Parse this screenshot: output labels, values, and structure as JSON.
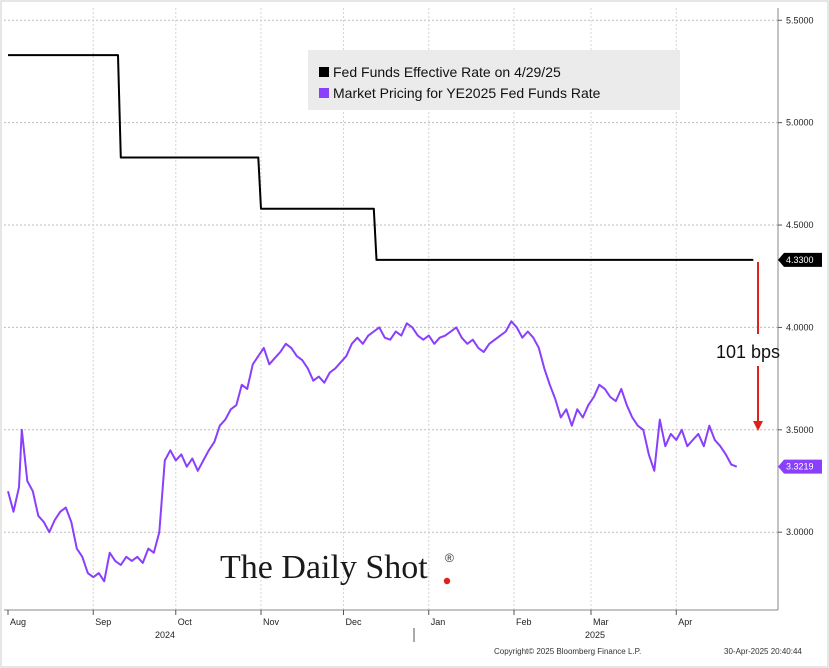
{
  "chart_data": {
    "type": "line",
    "ylim": [
      2.62,
      5.56
    ],
    "yticks": [
      "5.5000",
      "5.0000",
      "4.5000",
      "4.0000",
      "3.5000",
      "3.0000"
    ],
    "ytick_values": [
      5.5,
      5.0,
      4.5,
      4.0,
      3.5,
      3.0
    ],
    "month_ticks": [
      {
        "label": "Aug",
        "day": 0
      },
      {
        "label": "Sep",
        "day": 31
      },
      {
        "label": "Oct",
        "day": 61
      },
      {
        "label": "Nov",
        "day": 92
      },
      {
        "label": "Dec",
        "day": 122
      },
      {
        "label": "Jan",
        "day": 153
      },
      {
        "label": "Feb",
        "day": 184
      },
      {
        "label": "Mar",
        "day": 212
      },
      {
        "label": "Apr",
        "day": 243
      }
    ],
    "year_labels": [
      "2024",
      "2025"
    ],
    "x_end_day": 272,
    "series": [
      {
        "name": "Fed Funds Effective Rate on 4/29/25",
        "color": "#000000",
        "last_value_label": "4.3300",
        "points": [
          [
            0,
            5.33
          ],
          [
            40,
            5.33
          ],
          [
            41,
            4.83
          ],
          [
            91,
            4.83
          ],
          [
            92,
            4.58
          ],
          [
            133,
            4.58
          ],
          [
            134,
            4.33
          ],
          [
            271,
            4.33
          ]
        ]
      },
      {
        "name": "Market Pricing for YE2025 Fed Funds Rate",
        "color": "#8a3ffc",
        "last_value_label": "3.3219",
        "points": [
          [
            0,
            3.2
          ],
          [
            2,
            3.1
          ],
          [
            4,
            3.22
          ],
          [
            5,
            3.5
          ],
          [
            7,
            3.25
          ],
          [
            9,
            3.2
          ],
          [
            11,
            3.08
          ],
          [
            13,
            3.05
          ],
          [
            15,
            3.0
          ],
          [
            17,
            3.06
          ],
          [
            19,
            3.1
          ],
          [
            21,
            3.12
          ],
          [
            23,
            3.05
          ],
          [
            25,
            2.92
          ],
          [
            27,
            2.88
          ],
          [
            29,
            2.8
          ],
          [
            31,
            2.78
          ],
          [
            33,
            2.8
          ],
          [
            35,
            2.76
          ],
          [
            37,
            2.9
          ],
          [
            39,
            2.86
          ],
          [
            41,
            2.84
          ],
          [
            43,
            2.88
          ],
          [
            45,
            2.86
          ],
          [
            47,
            2.88
          ],
          [
            49,
            2.85
          ],
          [
            51,
            2.92
          ],
          [
            53,
            2.9
          ],
          [
            55,
            3.0
          ],
          [
            57,
            3.35
          ],
          [
            59,
            3.4
          ],
          [
            61,
            3.35
          ],
          [
            63,
            3.38
          ],
          [
            65,
            3.32
          ],
          [
            67,
            3.36
          ],
          [
            69,
            3.3
          ],
          [
            71,
            3.35
          ],
          [
            73,
            3.4
          ],
          [
            75,
            3.44
          ],
          [
            77,
            3.52
          ],
          [
            79,
            3.55
          ],
          [
            81,
            3.6
          ],
          [
            83,
            3.62
          ],
          [
            85,
            3.72
          ],
          [
            87,
            3.7
          ],
          [
            89,
            3.82
          ],
          [
            91,
            3.86
          ],
          [
            93,
            3.9
          ],
          [
            95,
            3.82
          ],
          [
            97,
            3.85
          ],
          [
            99,
            3.88
          ],
          [
            101,
            3.92
          ],
          [
            103,
            3.9
          ],
          [
            105,
            3.86
          ],
          [
            107,
            3.84
          ],
          [
            109,
            3.8
          ],
          [
            111,
            3.74
          ],
          [
            113,
            3.76
          ],
          [
            115,
            3.73
          ],
          [
            117,
            3.78
          ],
          [
            119,
            3.8
          ],
          [
            121,
            3.83
          ],
          [
            123,
            3.86
          ],
          [
            125,
            3.92
          ],
          [
            127,
            3.95
          ],
          [
            129,
            3.92
          ],
          [
            131,
            3.96
          ],
          [
            133,
            3.98
          ],
          [
            135,
            4.0
          ],
          [
            137,
            3.95
          ],
          [
            139,
            3.94
          ],
          [
            141,
            3.98
          ],
          [
            143,
            3.96
          ],
          [
            145,
            4.02
          ],
          [
            147,
            4.0
          ],
          [
            149,
            3.96
          ],
          [
            151,
            3.94
          ],
          [
            153,
            3.96
          ],
          [
            155,
            3.92
          ],
          [
            157,
            3.95
          ],
          [
            159,
            3.96
          ],
          [
            161,
            3.98
          ],
          [
            163,
            4.0
          ],
          [
            165,
            3.95
          ],
          [
            167,
            3.92
          ],
          [
            169,
            3.94
          ],
          [
            171,
            3.9
          ],
          [
            173,
            3.88
          ],
          [
            175,
            3.92
          ],
          [
            177,
            3.94
          ],
          [
            179,
            3.96
          ],
          [
            181,
            3.98
          ],
          [
            183,
            4.03
          ],
          [
            185,
            4.0
          ],
          [
            187,
            3.95
          ],
          [
            189,
            3.98
          ],
          [
            191,
            3.95
          ],
          [
            193,
            3.9
          ],
          [
            195,
            3.8
          ],
          [
            197,
            3.72
          ],
          [
            199,
            3.65
          ],
          [
            201,
            3.56
          ],
          [
            203,
            3.6
          ],
          [
            205,
            3.52
          ],
          [
            207,
            3.6
          ],
          [
            209,
            3.56
          ],
          [
            211,
            3.62
          ],
          [
            213,
            3.66
          ],
          [
            215,
            3.72
          ],
          [
            217,
            3.7
          ],
          [
            219,
            3.66
          ],
          [
            221,
            3.64
          ],
          [
            223,
            3.7
          ],
          [
            225,
            3.62
          ],
          [
            227,
            3.56
          ],
          [
            229,
            3.52
          ],
          [
            231,
            3.5
          ],
          [
            233,
            3.38
          ],
          [
            235,
            3.3
          ],
          [
            237,
            3.55
          ],
          [
            239,
            3.42
          ],
          [
            241,
            3.48
          ],
          [
            243,
            3.45
          ],
          [
            245,
            3.5
          ],
          [
            247,
            3.42
          ],
          [
            249,
            3.45
          ],
          [
            251,
            3.48
          ],
          [
            253,
            3.42
          ],
          [
            255,
            3.52
          ],
          [
            257,
            3.45
          ],
          [
            259,
            3.42
          ],
          [
            261,
            3.38
          ],
          [
            263,
            3.33
          ],
          [
            265,
            3.32
          ]
        ]
      }
    ],
    "annotation": {
      "text": "101 bps"
    },
    "watermark": "The Daily Shot",
    "watermark_mark": "®",
    "copyright": "Copyright© 2025 Bloomberg Finance L.P.",
    "timestamp": "30-Apr-2025 20:40:44"
  },
  "colors": {
    "annotation_arrow": "#e0201b",
    "plot_border": "#888888"
  }
}
